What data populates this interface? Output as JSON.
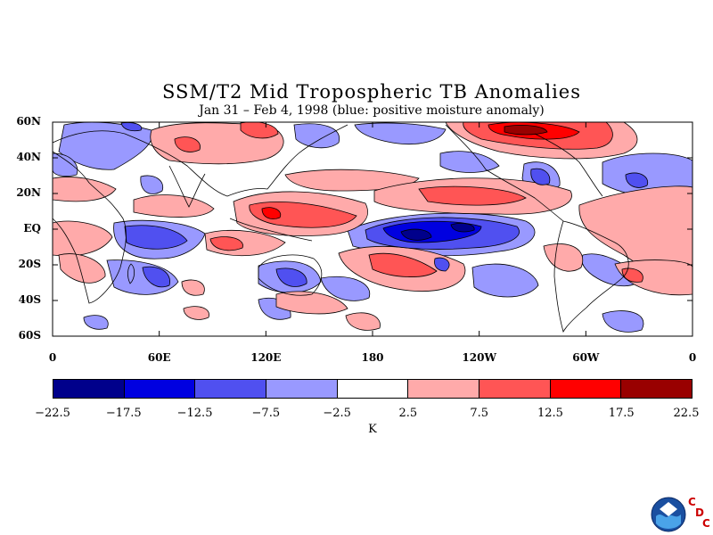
{
  "figure": {
    "title": "SSM/T2 Mid Tropospheric TB Anomalies",
    "subtitle": "Jan 31 – Feb 4, 1998 (blue: positive moisture anomaly)",
    "units": "K"
  },
  "axes": {
    "lat_labels": [
      "60N",
      "40N",
      "20N",
      "EQ",
      "20S",
      "40S",
      "60S"
    ],
    "lon_labels": [
      "0",
      "60E",
      "120E",
      "180",
      "120W",
      "60W",
      "0"
    ],
    "lat_range": [
      -60,
      60
    ],
    "lon_range": [
      0,
      360
    ]
  },
  "colorbar": {
    "levels": [
      "−22.5",
      "−17.5",
      "−12.5",
      "−7.5",
      "−2.5",
      "2.5",
      "7.5",
      "12.5",
      "17.5",
      "22.5"
    ],
    "colors": [
      "#00008b",
      "#0000e0",
      "#5050f0",
      "#9999ff",
      "#ffffff",
      "#ffaaaa",
      "#ff5555",
      "#ff0000",
      "#990000"
    ]
  },
  "branding": {
    "logo_icon": "noaa-logo-icon",
    "letters": [
      "C",
      "D",
      "C"
    ]
  }
}
